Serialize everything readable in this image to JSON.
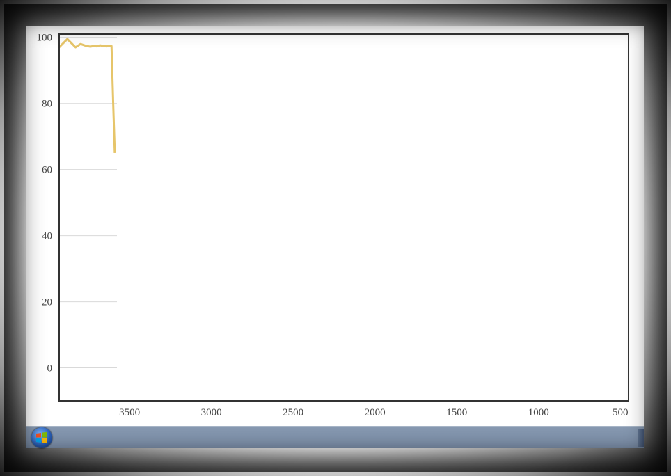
{
  "chart_data": {
    "type": "line",
    "title": "",
    "xlabel": "",
    "ylabel": "",
    "x_reversed": true,
    "xlim": [
      3930,
      450
    ],
    "ylim": [
      -10,
      101
    ],
    "grid": true,
    "x_ticks": [
      3500,
      3000,
      2500,
      2000,
      1500,
      1000,
      500
    ],
    "y_ticks": [
      0,
      20,
      40,
      60,
      80,
      100
    ],
    "x_tick_labels": [
      "3500",
      "3000",
      "2500",
      "2000",
      "1500",
      "1000",
      "500"
    ],
    "y_tick_labels": [
      "0",
      "20",
      "40",
      "60",
      "80",
      "100"
    ],
    "series": [
      {
        "color": "#e6c56a",
        "x": [
          3930,
          3910,
          3880,
          3850,
          3830,
          3800,
          3770,
          3740,
          3720,
          3700,
          3680,
          3660,
          3640,
          3620,
          3610,
          3600,
          3590
        ],
        "y": [
          97,
          98,
          99.5,
          98,
          97,
          98,
          97.5,
          97.2,
          97.4,
          97.3,
          97.6,
          97.4,
          97.3,
          97.5,
          97.4,
          80,
          65
        ]
      }
    ]
  },
  "colors": {
    "line": "#e6c56a",
    "axis": "#333333",
    "grid": "#d9d9d9",
    "taskbar": "#8092ab"
  },
  "taskbar": {
    "start_icon": "windows-logo-icon"
  }
}
